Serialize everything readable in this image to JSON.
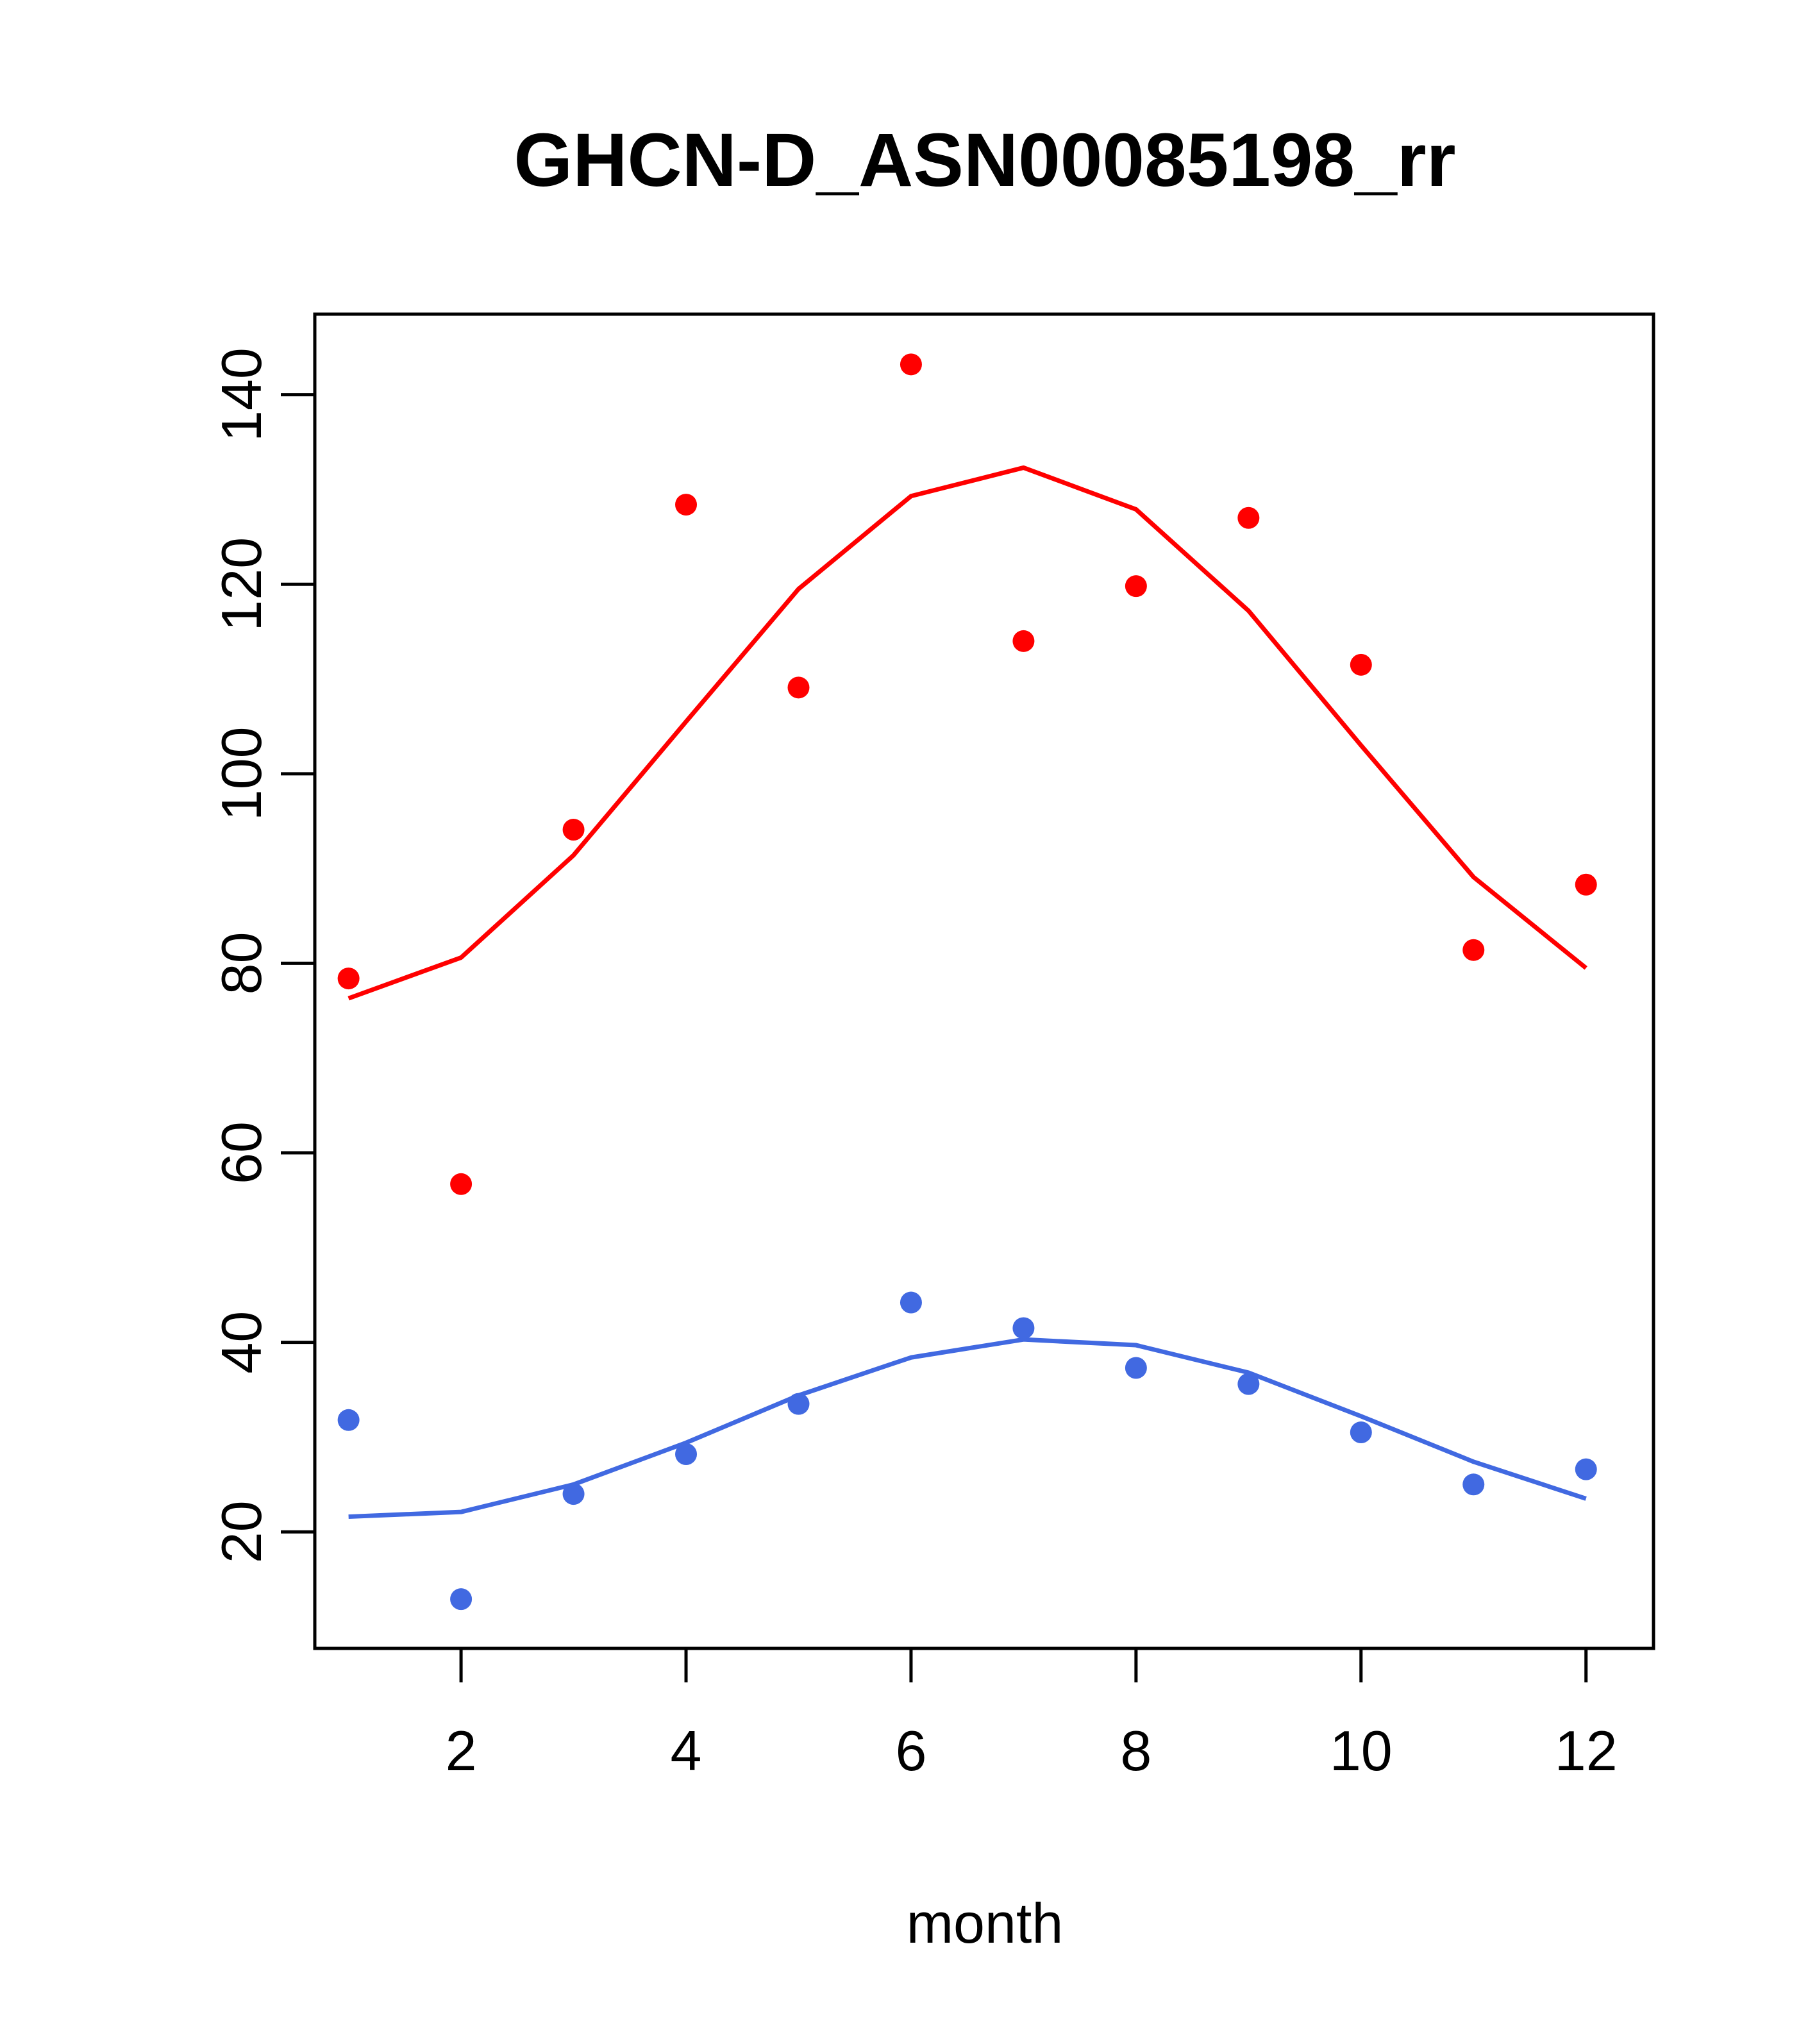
{
  "chart_data": {
    "type": "scatter",
    "title": "GHCN-D_ASN00085198_rr",
    "xlabel": "month",
    "ylabel": "",
    "xlim": [
      0.7,
      12.6
    ],
    "ylim": [
      7.7,
      148.5
    ],
    "x_ticks": [
      2,
      4,
      6,
      8,
      10,
      12
    ],
    "y_ticks": [
      20,
      40,
      60,
      80,
      100,
      120,
      140
    ],
    "grid": false,
    "legend": "none",
    "series": [
      {
        "name": "red-points",
        "kind": "points",
        "color": "#ff0000",
        "x": [
          1,
          2,
          3,
          4,
          5,
          6,
          7,
          8,
          9,
          10,
          11,
          12
        ],
        "values": [
          78.4,
          56.7,
          94.1,
          128.4,
          109.1,
          143.2,
          114.0,
          119.8,
          127.0,
          111.5,
          81.4,
          88.3
        ]
      },
      {
        "name": "red-fit",
        "kind": "line",
        "color": "#ff0000",
        "x": [
          1,
          2,
          3,
          4,
          5,
          6,
          7,
          8,
          9,
          10,
          11,
          12
        ],
        "values": [
          76.3,
          80.6,
          91.4,
          105.5,
          119.5,
          129.3,
          132.3,
          127.9,
          117.2,
          103.0,
          89.1,
          79.5
        ]
      },
      {
        "name": "blue-points",
        "kind": "points",
        "color": "#4169e1",
        "x": [
          1,
          2,
          3,
          4,
          5,
          6,
          7,
          8,
          9,
          10,
          11,
          12
        ],
        "values": [
          31.8,
          12.9,
          24.0,
          28.2,
          33.5,
          44.2,
          41.5,
          37.3,
          35.6,
          30.5,
          25.0,
          26.6
        ]
      },
      {
        "name": "blue-fit",
        "kind": "line",
        "color": "#4169e1",
        "x": [
          1,
          2,
          3,
          4,
          5,
          6,
          7,
          8,
          9,
          10,
          11,
          12
        ],
        "values": [
          21.6,
          22.1,
          25.0,
          29.4,
          34.4,
          38.4,
          40.3,
          39.7,
          36.8,
          32.2,
          27.4,
          23.5
        ]
      }
    ]
  }
}
